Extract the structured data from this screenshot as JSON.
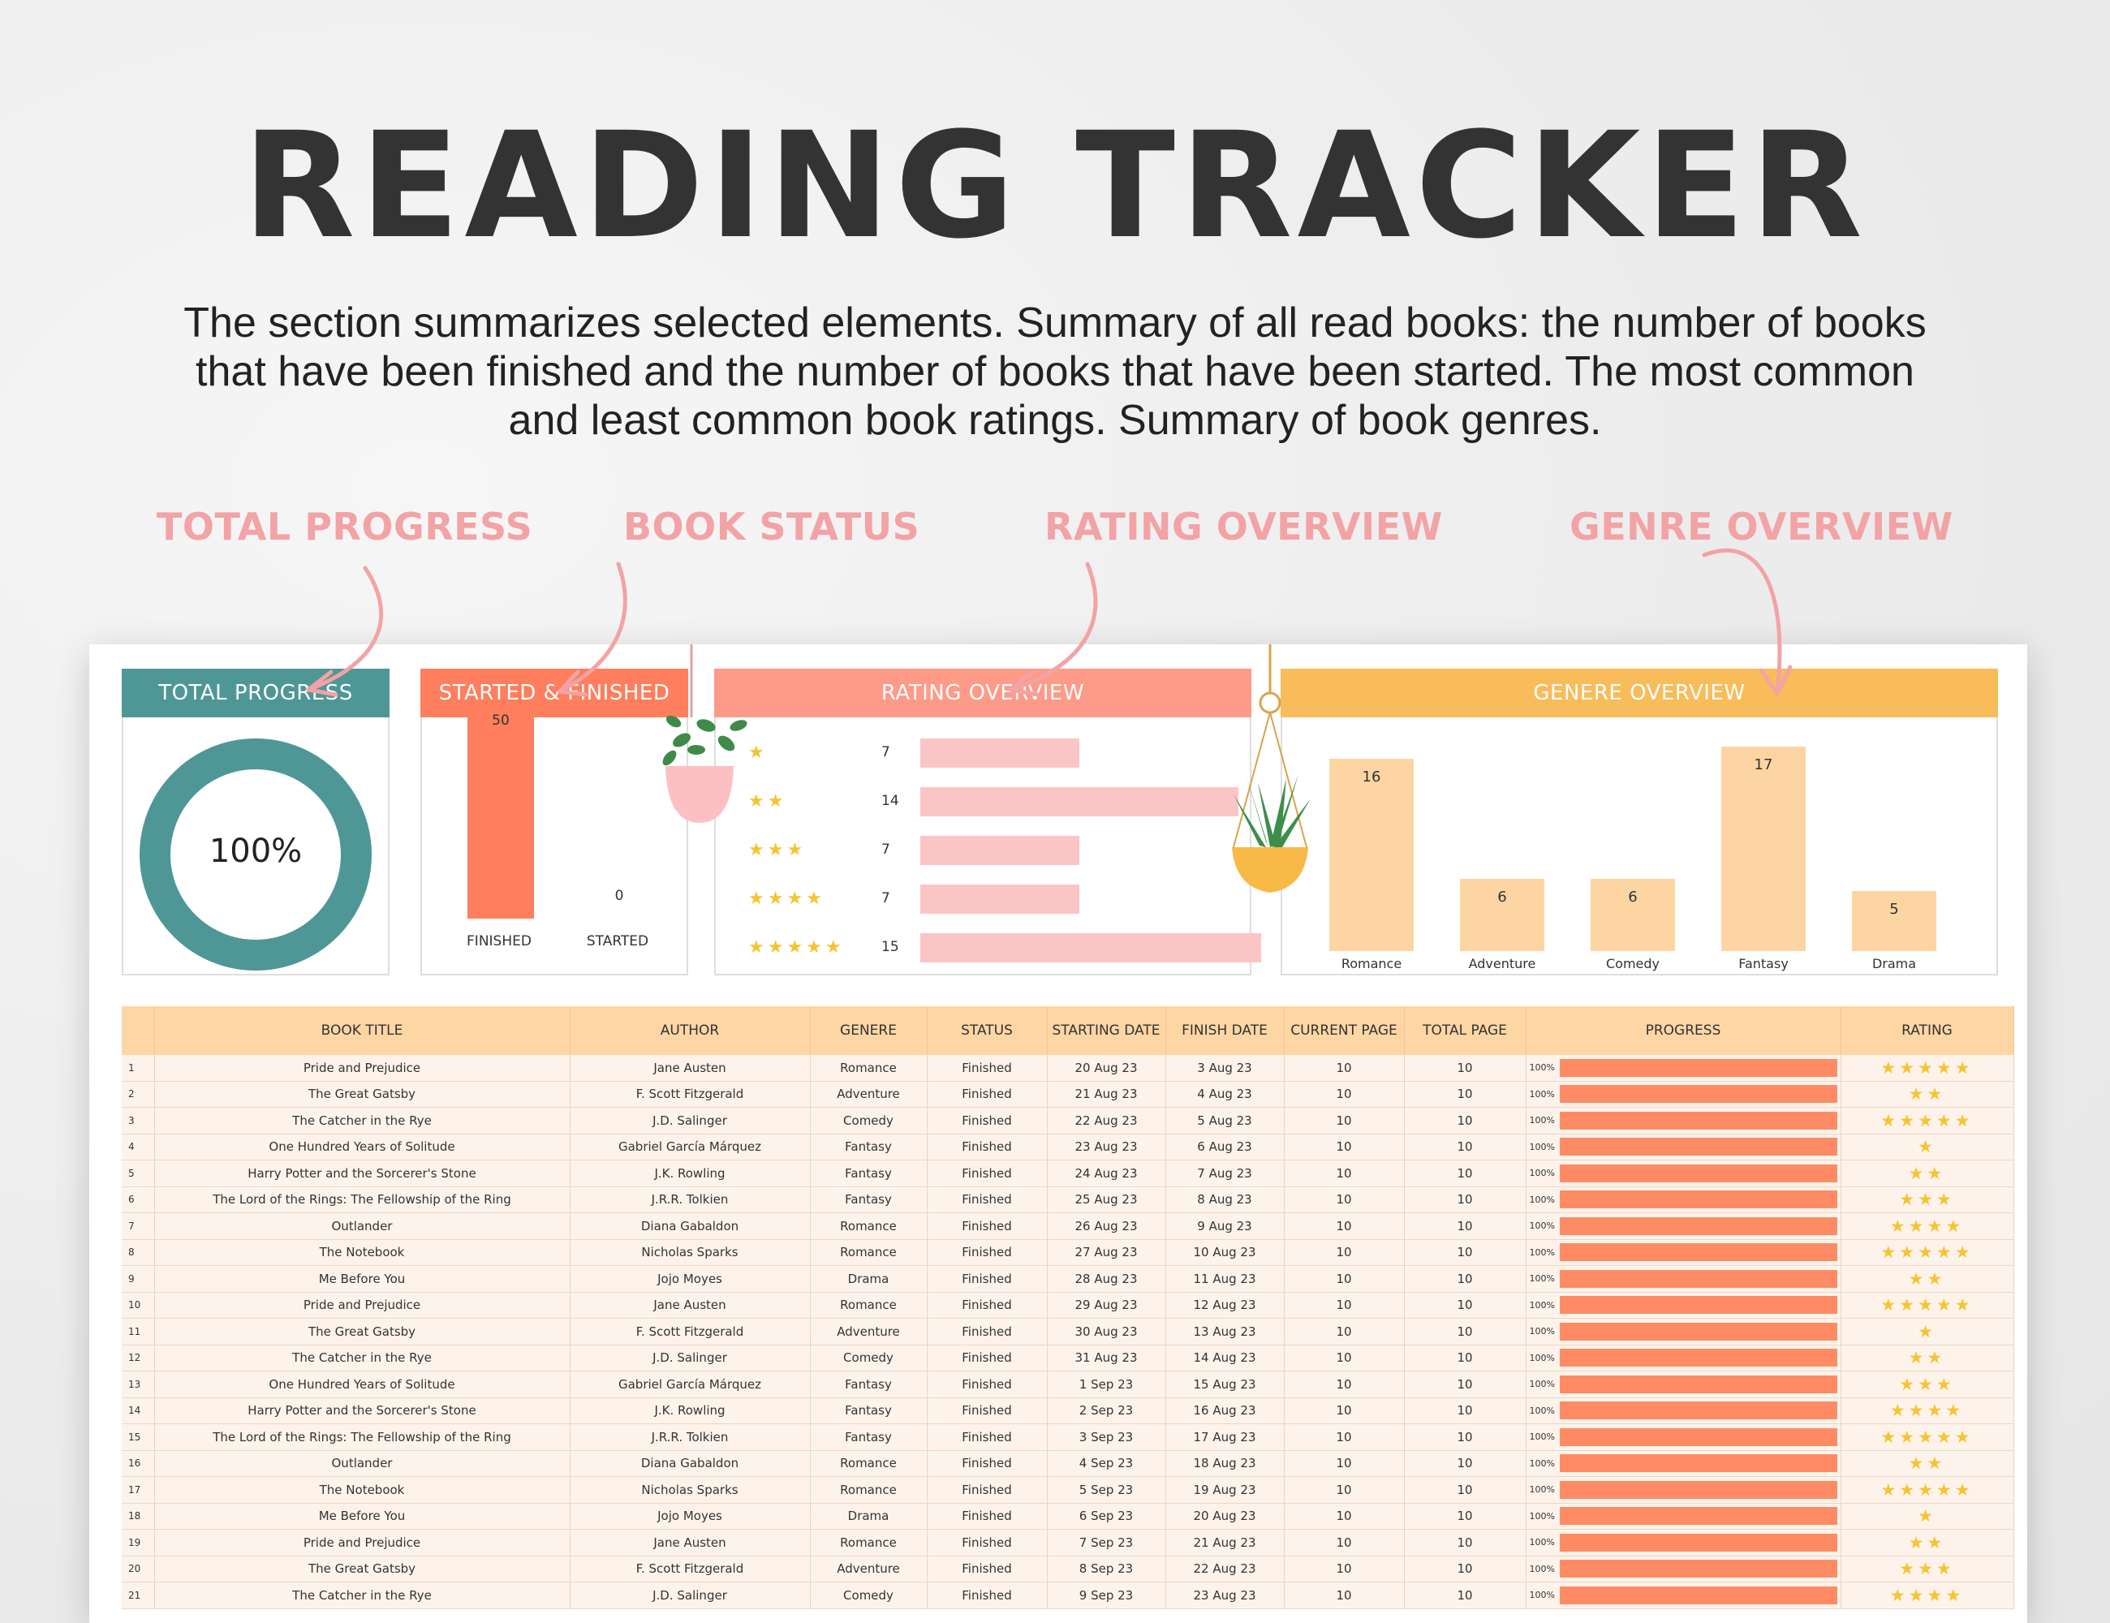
{
  "header": {
    "title": "READING TRACKER",
    "subtitle": "The section summarizes selected elements. Summary of all read books: the number of books that have been finished and the number of books that have been started. The most common and least common book ratings. Summary of book genres."
  },
  "callouts": {
    "total_progress": "TOTAL PROGRESS",
    "book_status": "BOOK STATUS",
    "rating_overview": "RATING OVERVIEW",
    "genre_overview": "GENRE OVERVIEW"
  },
  "colors": {
    "teal": "#4f9797",
    "coral": "#fe7e5d",
    "salmon": "#fe9a88",
    "orange": "#f8bc5b",
    "pink_callout": "#f3a3a5"
  },
  "panels": {
    "total_progress": {
      "title": "TOTAL PROGRESS",
      "percent_label": "100%",
      "percent": 100
    },
    "status": {
      "title": "STARTED & FINISHED",
      "finished_label": "FINISHED",
      "finished_value": "50",
      "finished": 50,
      "started_label": "STARTED",
      "started_value": "0",
      "started": 0
    },
    "rating": {
      "title": "RATING OVERVIEW",
      "rows": [
        {
          "stars": 1,
          "count": "7",
          "value": 7
        },
        {
          "stars": 2,
          "count": "14",
          "value": 14
        },
        {
          "stars": 3,
          "count": "7",
          "value": 7
        },
        {
          "stars": 4,
          "count": "7",
          "value": 7
        },
        {
          "stars": 5,
          "count": "15",
          "value": 15
        }
      ]
    },
    "genre": {
      "title": "GENERE OVERVIEW",
      "bars": [
        {
          "name": "Romance",
          "count": "16",
          "value": 16
        },
        {
          "name": "Adventure",
          "count": "6",
          "value": 6
        },
        {
          "name": "Comedy",
          "count": "6",
          "value": 6
        },
        {
          "name": "Fantasy",
          "count": "17",
          "value": 17
        },
        {
          "name": "Drama",
          "count": "5",
          "value": 5
        }
      ]
    }
  },
  "table": {
    "columns": [
      "",
      "BOOK TITLE",
      "AUTHOR",
      "GENERE",
      "STATUS",
      "STARTING DATE",
      "FINISH DATE",
      "CURRENT PAGE",
      "TOTAL PAGE",
      "PROGRESS",
      "RATING"
    ],
    "rows": [
      {
        "n": "1",
        "title": "Pride and Prejudice",
        "author": "Jane Austen",
        "genre": "Romance",
        "status": "Finished",
        "start": "20 Aug 23",
        "finish": "3 Aug 23",
        "current": "10",
        "total": "10",
        "pct": "100%",
        "progress": 1,
        "rating": 5
      },
      {
        "n": "2",
        "title": "The Great Gatsby",
        "author": "F. Scott Fitzgerald",
        "genre": "Adventure",
        "status": "Finished",
        "start": "21 Aug 23",
        "finish": "4 Aug 23",
        "current": "10",
        "total": "10",
        "pct": "100%",
        "progress": 1,
        "rating": 2
      },
      {
        "n": "3",
        "title": "The Catcher in the Rye",
        "author": "J.D. Salinger",
        "genre": "Comedy",
        "status": "Finished",
        "start": "22 Aug 23",
        "finish": "5 Aug 23",
        "current": "10",
        "total": "10",
        "pct": "100%",
        "progress": 1,
        "rating": 5
      },
      {
        "n": "4",
        "title": "One Hundred Years of Solitude",
        "author": "Gabriel García Márquez",
        "genre": "Fantasy",
        "status": "Finished",
        "start": "23 Aug 23",
        "finish": "6 Aug 23",
        "current": "10",
        "total": "10",
        "pct": "100%",
        "progress": 1,
        "rating": 1
      },
      {
        "n": "5",
        "title": "Harry Potter and the Sorcerer's Stone",
        "author": "J.K. Rowling",
        "genre": "Fantasy",
        "status": "Finished",
        "start": "24 Aug 23",
        "finish": "7 Aug 23",
        "current": "10",
        "total": "10",
        "pct": "100%",
        "progress": 1,
        "rating": 2
      },
      {
        "n": "6",
        "title": "The Lord of the Rings: The Fellowship of the Ring",
        "author": "J.R.R. Tolkien",
        "genre": "Fantasy",
        "status": "Finished",
        "start": "25 Aug 23",
        "finish": "8 Aug 23",
        "current": "10",
        "total": "10",
        "pct": "100%",
        "progress": 1,
        "rating": 3
      },
      {
        "n": "7",
        "title": "Outlander",
        "author": "Diana Gabaldon",
        "genre": "Romance",
        "status": "Finished",
        "start": "26 Aug 23",
        "finish": "9 Aug 23",
        "current": "10",
        "total": "10",
        "pct": "100%",
        "progress": 1,
        "rating": 4
      },
      {
        "n": "8",
        "title": "The Notebook",
        "author": "Nicholas Sparks",
        "genre": "Romance",
        "status": "Finished",
        "start": "27 Aug 23",
        "finish": "10 Aug 23",
        "current": "10",
        "total": "10",
        "pct": "100%",
        "progress": 1,
        "rating": 5
      },
      {
        "n": "9",
        "title": "Me Before You",
        "author": "Jojo Moyes",
        "genre": "Drama",
        "status": "Finished",
        "start": "28 Aug 23",
        "finish": "11 Aug 23",
        "current": "10",
        "total": "10",
        "pct": "100%",
        "progress": 1,
        "rating": 2
      },
      {
        "n": "10",
        "title": "Pride and Prejudice",
        "author": "Jane Austen",
        "genre": "Romance",
        "status": "Finished",
        "start": "29 Aug 23",
        "finish": "12 Aug 23",
        "current": "10",
        "total": "10",
        "pct": "100%",
        "progress": 1,
        "rating": 5
      },
      {
        "n": "11",
        "title": "The Great Gatsby",
        "author": "F. Scott Fitzgerald",
        "genre": "Adventure",
        "status": "Finished",
        "start": "30 Aug 23",
        "finish": "13 Aug 23",
        "current": "10",
        "total": "10",
        "pct": "100%",
        "progress": 1,
        "rating": 1
      },
      {
        "n": "12",
        "title": "The Catcher in the Rye",
        "author": "J.D. Salinger",
        "genre": "Comedy",
        "status": "Finished",
        "start": "31 Aug 23",
        "finish": "14 Aug 23",
        "current": "10",
        "total": "10",
        "pct": "100%",
        "progress": 1,
        "rating": 2
      },
      {
        "n": "13",
        "title": "One Hundred Years of Solitude",
        "author": "Gabriel García Márquez",
        "genre": "Fantasy",
        "status": "Finished",
        "start": "1 Sep 23",
        "finish": "15 Aug 23",
        "current": "10",
        "total": "10",
        "pct": "100%",
        "progress": 1,
        "rating": 3
      },
      {
        "n": "14",
        "title": "Harry Potter and the Sorcerer's Stone",
        "author": "J.K. Rowling",
        "genre": "Fantasy",
        "status": "Finished",
        "start": "2 Sep 23",
        "finish": "16 Aug 23",
        "current": "10",
        "total": "10",
        "pct": "100%",
        "progress": 1,
        "rating": 4
      },
      {
        "n": "15",
        "title": "The Lord of the Rings: The Fellowship of the Ring",
        "author": "J.R.R. Tolkien",
        "genre": "Fantasy",
        "status": "Finished",
        "start": "3 Sep 23",
        "finish": "17 Aug 23",
        "current": "10",
        "total": "10",
        "pct": "100%",
        "progress": 1,
        "rating": 5
      },
      {
        "n": "16",
        "title": "Outlander",
        "author": "Diana Gabaldon",
        "genre": "Romance",
        "status": "Finished",
        "start": "4 Sep 23",
        "finish": "18 Aug 23",
        "current": "10",
        "total": "10",
        "pct": "100%",
        "progress": 1,
        "rating": 2
      },
      {
        "n": "17",
        "title": "The Notebook",
        "author": "Nicholas Sparks",
        "genre": "Romance",
        "status": "Finished",
        "start": "5 Sep 23",
        "finish": "19 Aug 23",
        "current": "10",
        "total": "10",
        "pct": "100%",
        "progress": 1,
        "rating": 5
      },
      {
        "n": "18",
        "title": "Me Before You",
        "author": "Jojo Moyes",
        "genre": "Drama",
        "status": "Finished",
        "start": "6 Sep 23",
        "finish": "20 Aug 23",
        "current": "10",
        "total": "10",
        "pct": "100%",
        "progress": 1,
        "rating": 1
      },
      {
        "n": "19",
        "title": "Pride and Prejudice",
        "author": "Jane Austen",
        "genre": "Romance",
        "status": "Finished",
        "start": "7 Sep 23",
        "finish": "21 Aug 23",
        "current": "10",
        "total": "10",
        "pct": "100%",
        "progress": 1,
        "rating": 2
      },
      {
        "n": "20",
        "title": "The Great Gatsby",
        "author": "F. Scott Fitzgerald",
        "genre": "Adventure",
        "status": "Finished",
        "start": "8 Sep 23",
        "finish": "22 Aug 23",
        "current": "10",
        "total": "10",
        "pct": "100%",
        "progress": 1,
        "rating": 3
      },
      {
        "n": "21",
        "title": "The Catcher in the Rye",
        "author": "J.D. Salinger",
        "genre": "Comedy",
        "status": "Finished",
        "start": "9 Sep 23",
        "finish": "23 Aug 23",
        "current": "10",
        "total": "10",
        "pct": "100%",
        "progress": 1,
        "rating": 4
      }
    ]
  }
}
